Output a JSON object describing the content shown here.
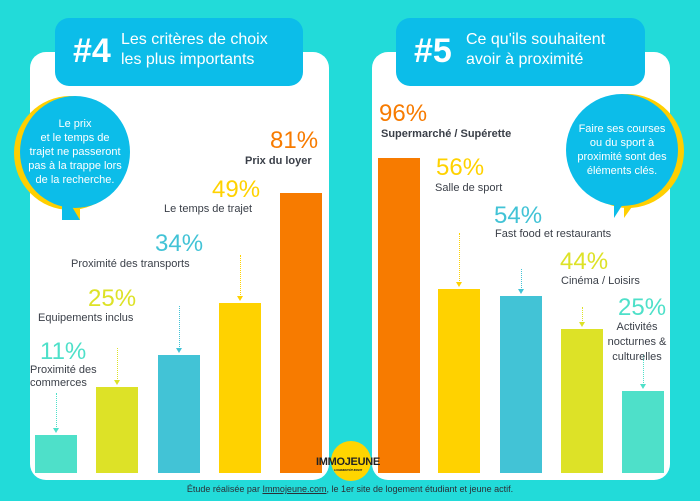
{
  "colors": {
    "background": "#22dbd9",
    "header": "#0cbde9",
    "orange": "#f77b00",
    "yellow": "#ffd200",
    "blue": "#42c3d6",
    "lime": "#dde227",
    "teal": "#4ee0c9"
  },
  "chart_data": [
    {
      "type": "bar",
      "number": "#4",
      "title_line1": "Les critères de choix",
      "title_line2": "les plus importants",
      "categories": [
        "Proximité des commerces",
        "Equipements inclus",
        "Proximité des transports",
        "Le temps de trajet",
        "Prix du loyer"
      ],
      "values": [
        11,
        25,
        34,
        49,
        81
      ],
      "value_labels": [
        "11%",
        "25%",
        "34%",
        "49%",
        "81%"
      ],
      "colors": [
        "#4ee0c9",
        "#dde227",
        "#42c3d6",
        "#ffd200",
        "#f77b00"
      ],
      "ylim": [
        0,
        100
      ],
      "callout": [
        "Le prix",
        "et le temps de",
        "trajet ne passeront",
        "pas à la trappe lors",
        "de la recherche."
      ]
    },
    {
      "type": "bar",
      "number": "#5",
      "title_line1": "Ce qu'ils souhaitent",
      "title_line2": "avoir à proximité",
      "categories": [
        "Supermarché / Supérette",
        "Salle de sport",
        "Fast food et restaurants",
        "Cinéma / Loisirs",
        "Activités nocturnes & culturelles"
      ],
      "values": [
        96,
        56,
        54,
        44,
        25
      ],
      "value_labels": [
        "96%",
        "56%",
        "54%",
        "44%",
        "25%"
      ],
      "colors": [
        "#f77b00",
        "#ffd200",
        "#42c3d6",
        "#dde227",
        "#4ee0c9"
      ],
      "ylim": [
        0,
        100
      ],
      "callout": [
        "Faire ses courses",
        "ou du sport à",
        "proximité sont des",
        "éléments clés."
      ]
    }
  ],
  "logo": {
    "name": "IMMOJEUNE",
    "tagline": "LOGEMENT ÉTUDIANT"
  },
  "footer": {
    "prefix": "Étude réalisée par ",
    "link": "Immojeune.com",
    "suffix": ", le 1er site de logement étudiant et jeune actif."
  }
}
